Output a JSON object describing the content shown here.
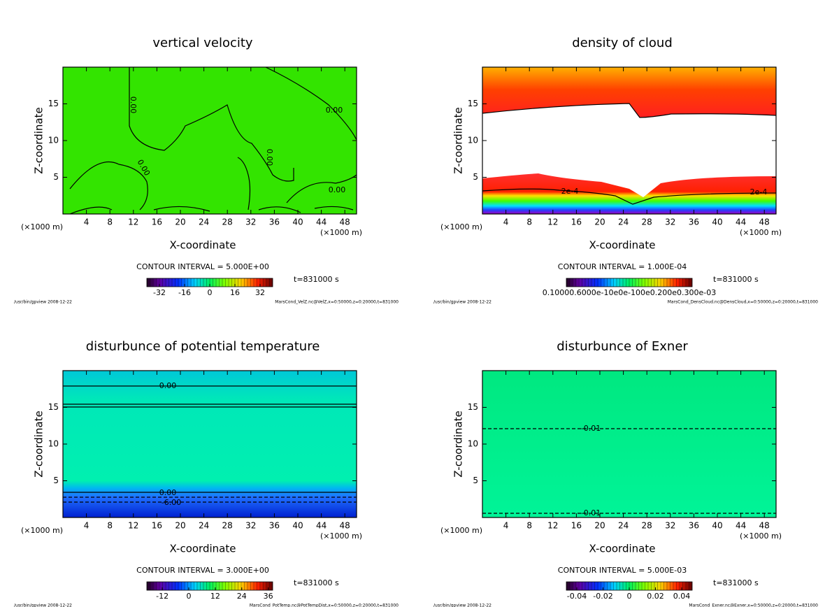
{
  "chart_data": [
    {
      "type": "contour",
      "title": "vertical velocity",
      "xlabel": "X-coordinate",
      "ylabel": "Z-coordinate",
      "xunit": "(×1000 m)",
      "xlim": [
        0,
        50
      ],
      "xticks": [
        4,
        8,
        12,
        16,
        20,
        24,
        28,
        32,
        36,
        40,
        44,
        48
      ],
      "ylim": [
        0,
        20
      ],
      "yticks": [
        5,
        10,
        15
      ],
      "contour_interval": "CONTOUR INTERVAL = 5.000E+00",
      "time": "t=831000 s",
      "colorbar": {
        "lim": [
          -40,
          40
        ],
        "ticks": [
          -32,
          -16,
          0,
          16,
          32
        ]
      },
      "contour_labels": [
        "0.00",
        "0.00",
        "0.00",
        "0.00",
        "0.00"
      ],
      "footer_left": "/usr/bin/gpview  2008-12-22",
      "footer_right": "MarsCond_VelZ.nc@VelZ,x=0:50000,z=0:20000,t=831000"
    },
    {
      "type": "contour",
      "title": "density of cloud",
      "xlabel": "X-coordinate",
      "ylabel": "Z-coordinate",
      "xunit": "(×1000 m)",
      "xlim": [
        0,
        50
      ],
      "xticks": [
        4,
        8,
        12,
        16,
        20,
        24,
        28,
        32,
        36,
        40,
        44,
        48
      ],
      "ylim": [
        0,
        20
      ],
      "yticks": [
        5,
        10,
        15
      ],
      "contour_interval": "CONTOUR INTERVAL = 1.000E-04",
      "time": "t=831000 s",
      "colorbar": {
        "tick_text": "0.10000.6000e-10e0e-100e0.200e0.300e-03"
      },
      "contour_labels": [
        "2e-4",
        "2e-4"
      ],
      "footer_left": "/usr/bin/gpview  2008-12-22",
      "footer_right": "MarsCond_DensCloud.nc@DensCloud,x=0:50000,z=0:20000,t=831000"
    },
    {
      "type": "contour",
      "title": "disturbunce of potential temperature",
      "xlabel": "X-coordinate",
      "ylabel": "Z-coordinate",
      "xunit": "(×1000 m)",
      "xlim": [
        0,
        50
      ],
      "xticks": [
        4,
        8,
        12,
        16,
        20,
        24,
        28,
        32,
        36,
        40,
        44,
        48
      ],
      "ylim": [
        0,
        20
      ],
      "yticks": [
        5,
        10,
        15
      ],
      "contour_interval": "CONTOUR INTERVAL = 3.000E+00",
      "time": "t=831000 s",
      "colorbar": {
        "lim": [
          -19,
          38
        ],
        "ticks": [
          -12,
          0,
          12,
          24,
          36
        ]
      },
      "contour_labels": [
        "0.00",
        "0.00",
        "-6.00"
      ],
      "footer_left": "/usr/bin/gpview  2008-12-22",
      "footer_right": "MarsCond_PotTemp.nc@PotTempDist,x=0:50000,z=0:20000,t=831000"
    },
    {
      "type": "contour",
      "title": "disturbunce of Exner",
      "xlabel": "X-coordinate",
      "ylabel": "Z-coordinate",
      "xunit": "(×1000 m)",
      "xlim": [
        0,
        50
      ],
      "xticks": [
        4,
        8,
        12,
        16,
        20,
        24,
        28,
        32,
        36,
        40,
        44,
        48
      ],
      "ylim": [
        0,
        20
      ],
      "yticks": [
        5,
        10,
        15
      ],
      "contour_interval": "CONTOUR INTERVAL = 5.000E-03",
      "time": "t=831000 s",
      "colorbar": {
        "lim": [
          -0.048,
          0.048
        ],
        "ticks": [
          -0.04,
          -0.02,
          0,
          0.02,
          0.04
        ]
      },
      "contour_labels": [
        "-0.01",
        "-0.01"
      ],
      "footer_left": "/usr/bin/gpview  2008-12-22",
      "footer_right": "MarsCond_Exner.nc@Exner,x=0:50000,z=0:20000,t=831000"
    }
  ]
}
